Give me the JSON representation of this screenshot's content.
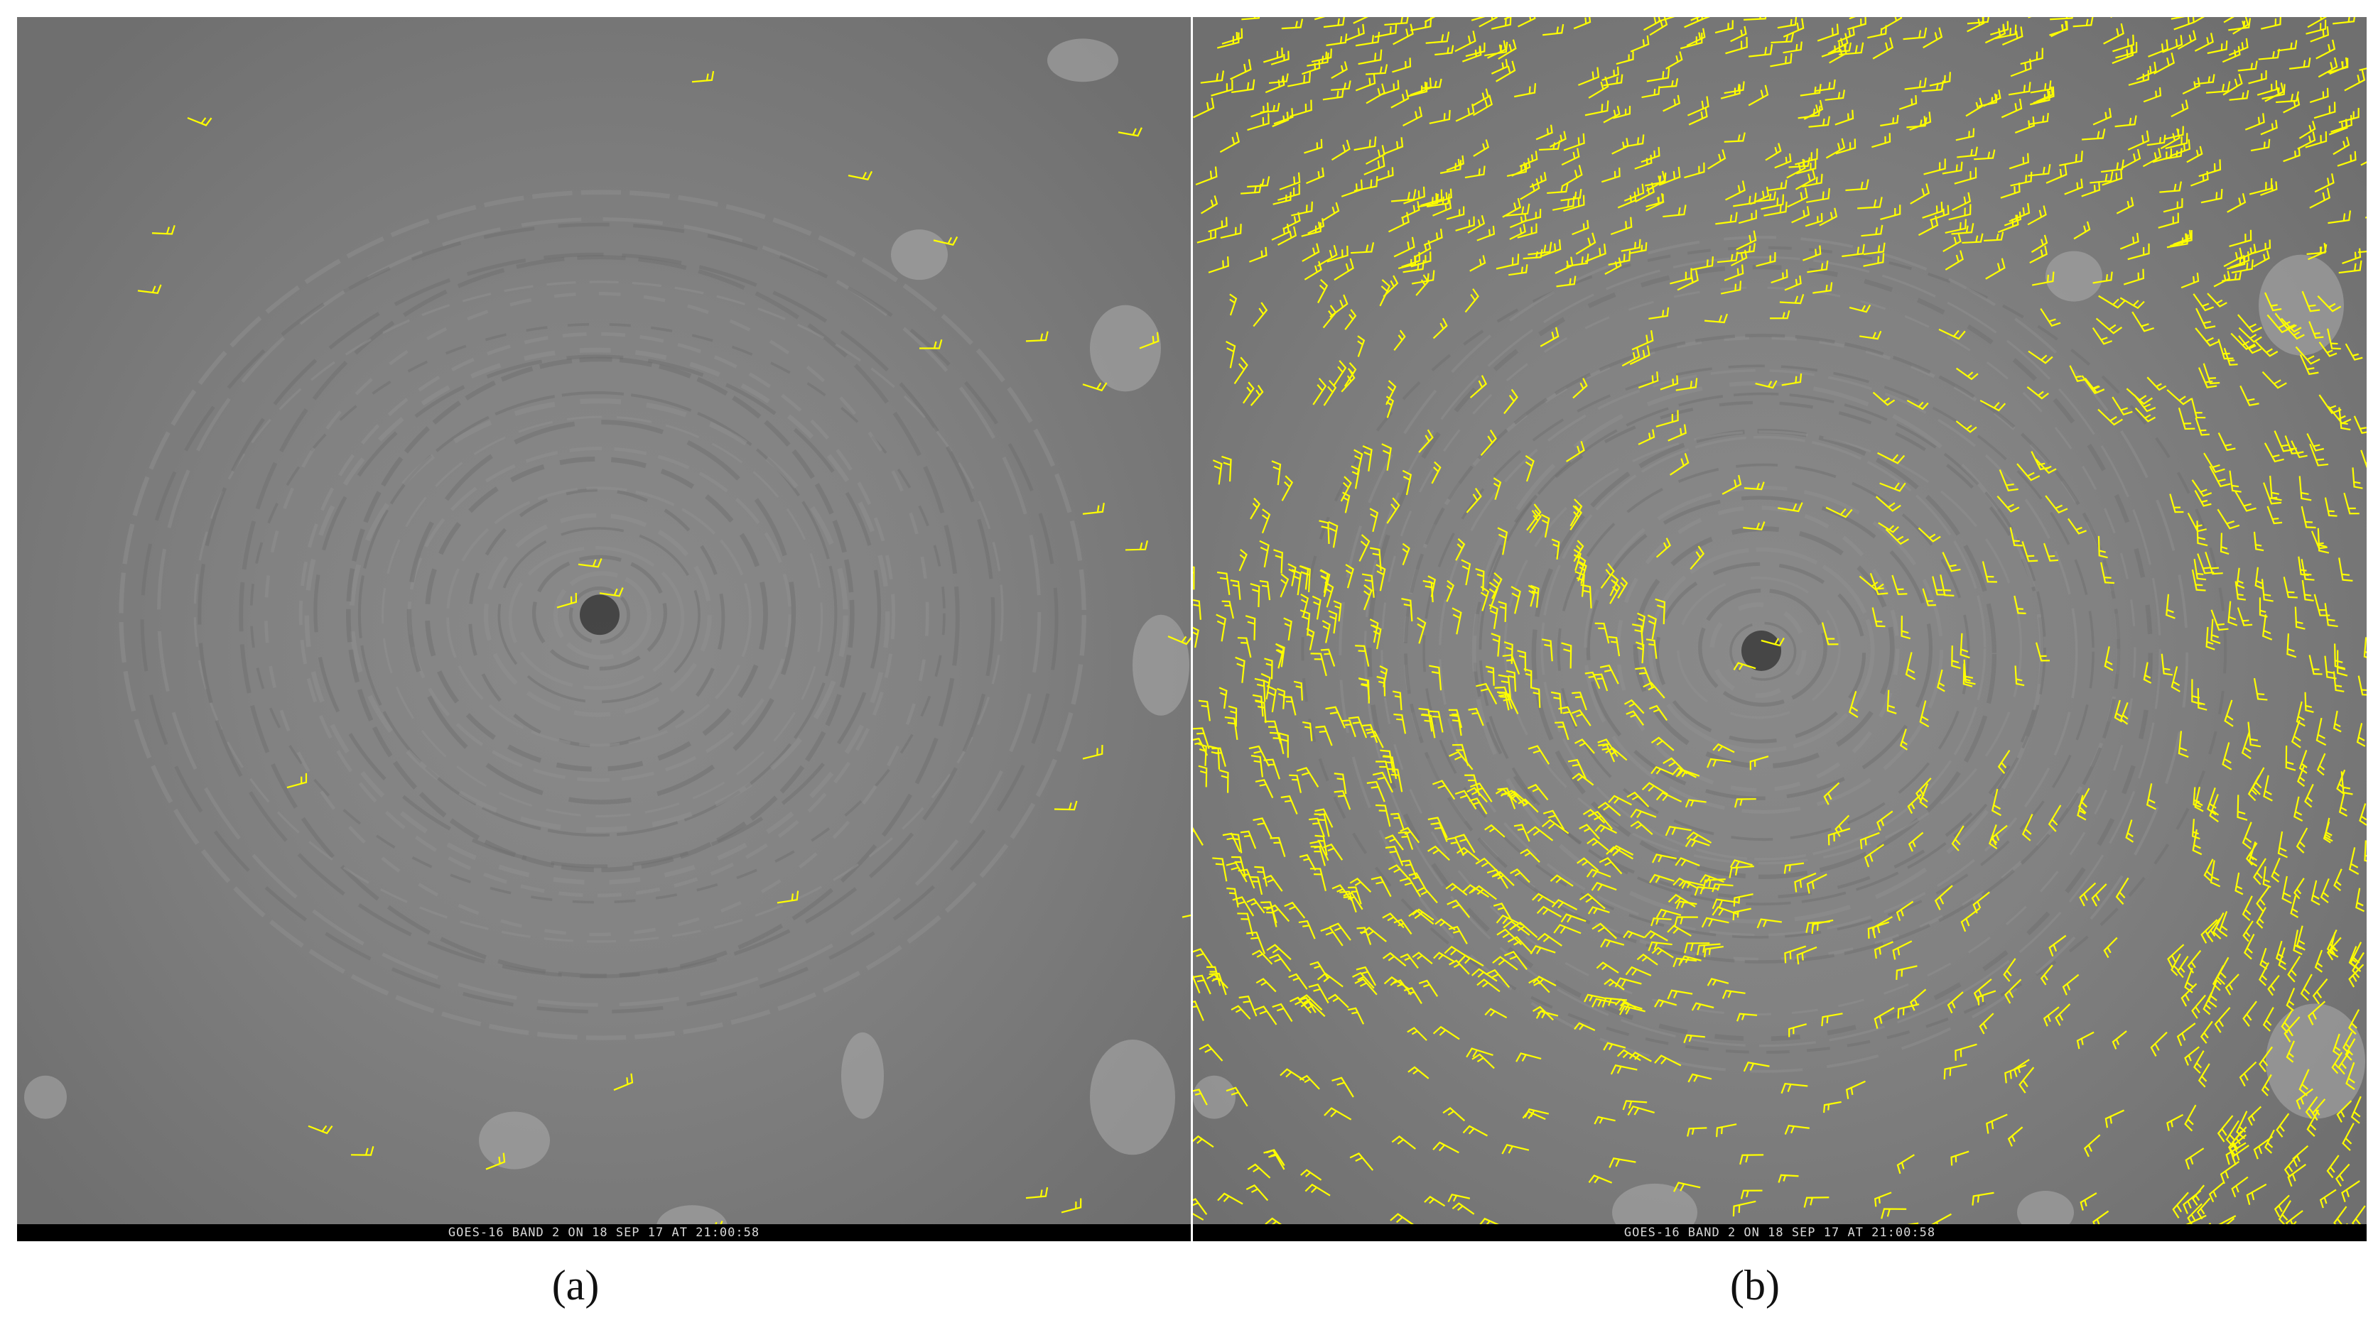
{
  "panels": [
    {
      "id": "a",
      "label": "(a)",
      "caption": "GOES-16 BAND 2 ON 18 SEP 17 AT 21:00:58",
      "wind_barb_density": "sparse"
    },
    {
      "id": "b",
      "label": "(b)",
      "caption": "GOES-16 BAND 2 ON 18 SEP 17 AT 21:00:58",
      "wind_barb_density": "dense"
    }
  ],
  "colors": {
    "background_gray": "#7a7a7a",
    "wind_barb": "#ffff00",
    "caption_bar": "#000000",
    "caption_text": "#d8d8d8"
  }
}
